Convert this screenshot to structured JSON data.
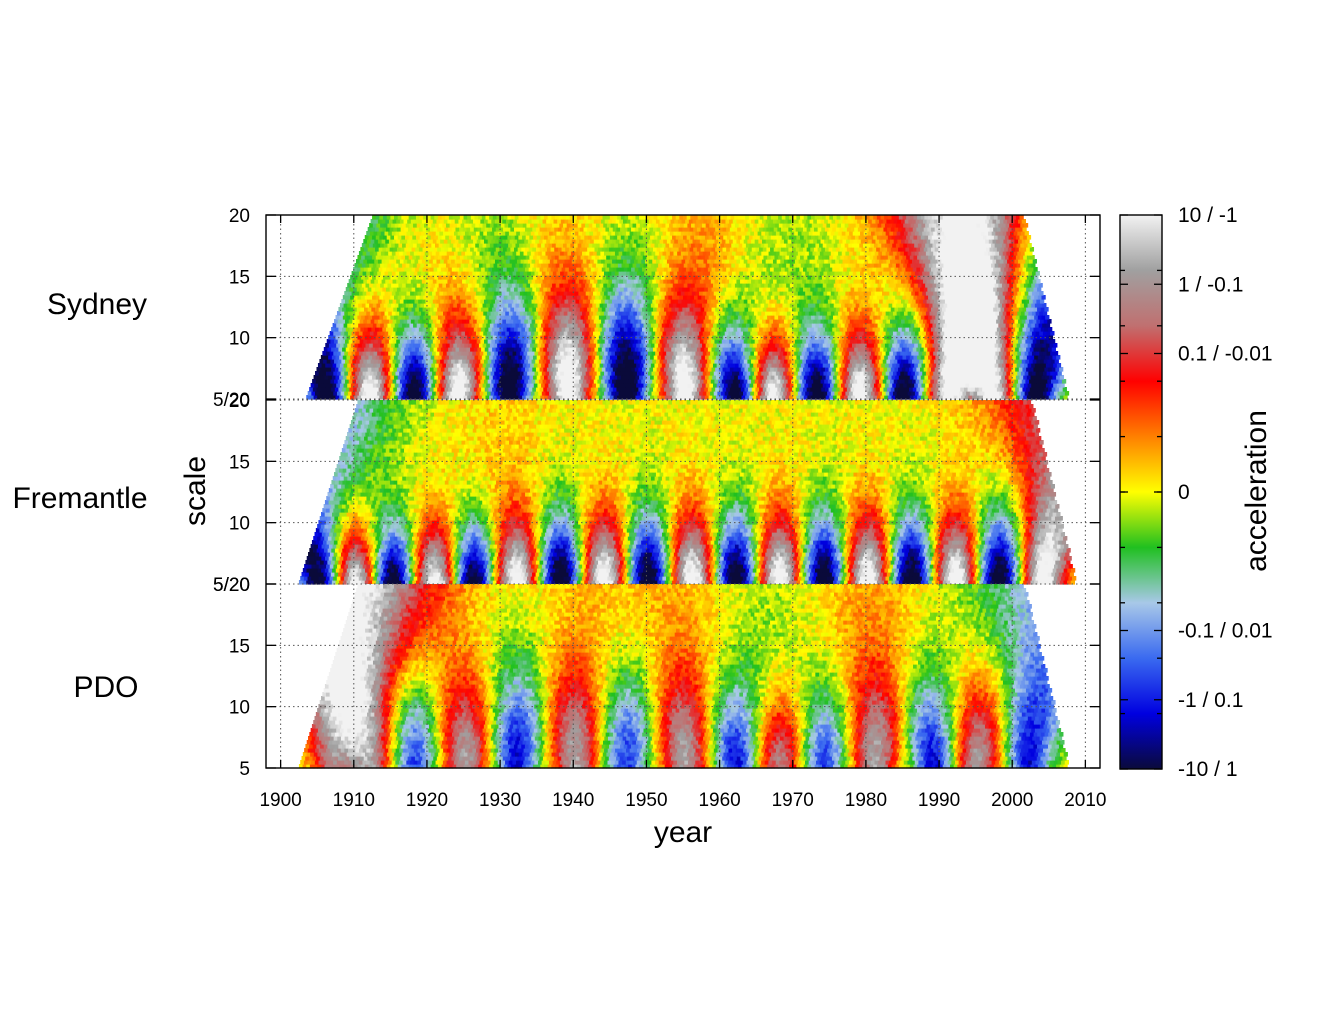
{
  "chart_data": {
    "type": "heatmap",
    "xlabel": "year",
    "ylabel": "scale",
    "colorbar_label": "acceleration",
    "xlim": [
      1898,
      2012
    ],
    "x_ticks": [
      "1900",
      "1910",
      "1920",
      "1930",
      "1940",
      "1950",
      "1960",
      "1970",
      "1980",
      "1990",
      "2000",
      "2010"
    ],
    "colorbar_ticks": [
      {
        "label": "10 / -1",
        "value": 1.0
      },
      {
        "label": "1 / -0.1",
        "value": 0.75
      },
      {
        "label": "0.1 / -0.01",
        "value": 0.5
      },
      {
        "label": "0",
        "value": 0.0
      },
      {
        "label": "-0.1 / 0.01",
        "value": -0.5
      },
      {
        "label": "-1 / 0.1",
        "value": -0.75
      },
      {
        "label": "-10 / 1",
        "value": -1.0
      }
    ],
    "colorbar_colors": [
      "#0a0a3a",
      "#0000e0",
      "#3a6af0",
      "#a8c8e8",
      "#20c020",
      "#ffff00",
      "#ff8000",
      "#ff0000",
      "#c07070",
      "#a0a0a0",
      "#f2f2f2"
    ],
    "panels": [
      {
        "name": "Sydney",
        "y_ticks": [
          "5/20",
          "10",
          "15",
          "20"
        ],
        "ylim": [
          5,
          20
        ],
        "x_start": 1903.5,
        "x_end": 2007.5,
        "phases": [
          {
            "year": 1906,
            "sign": -1
          },
          {
            "year": 1912,
            "sign": 1
          },
          {
            "year": 1918,
            "sign": -1
          },
          {
            "year": 1924,
            "sign": 1
          },
          {
            "year": 1931,
            "sign": -1
          },
          {
            "year": 1939,
            "sign": 1
          },
          {
            "year": 1947,
            "sign": -1
          },
          {
            "year": 1955,
            "sign": 1
          },
          {
            "year": 1962,
            "sign": -1
          },
          {
            "year": 1967,
            "sign": 1
          },
          {
            "year": 1973,
            "sign": -1
          },
          {
            "year": 1979,
            "sign": 1
          },
          {
            "year": 1985,
            "sign": -1
          },
          {
            "year": 1991,
            "sign": 1
          },
          {
            "year": 1997,
            "sign": 1
          },
          {
            "year": 2003,
            "sign": -1
          }
        ]
      },
      {
        "name": "Fremantle",
        "y_ticks": [
          "5/20",
          "10",
          "15",
          "20"
        ],
        "ylim": [
          5,
          20
        ],
        "x_start": 1902.5,
        "x_end": 2008.5,
        "phases": [
          {
            "year": 1905,
            "sign": -1
          },
          {
            "year": 1910,
            "sign": 1
          },
          {
            "year": 1915,
            "sign": -1
          },
          {
            "year": 1921,
            "sign": 1
          },
          {
            "year": 1926,
            "sign": -1
          },
          {
            "year": 1932,
            "sign": 1
          },
          {
            "year": 1938,
            "sign": -1
          },
          {
            "year": 1944,
            "sign": 1
          },
          {
            "year": 1950,
            "sign": -1
          },
          {
            "year": 1956,
            "sign": 1
          },
          {
            "year": 1962,
            "sign": -1
          },
          {
            "year": 1968,
            "sign": 1
          },
          {
            "year": 1974,
            "sign": -1
          },
          {
            "year": 1980,
            "sign": 1
          },
          {
            "year": 1986,
            "sign": -1
          },
          {
            "year": 1992,
            "sign": 1
          },
          {
            "year": 1998,
            "sign": -1
          },
          {
            "year": 2004,
            "sign": 1
          }
        ]
      },
      {
        "name": "PDO",
        "y_ticks": [
          "5",
          "10",
          "15",
          "5/20"
        ],
        "ylim": [
          5,
          20
        ],
        "x_start": 1902.5,
        "x_end": 2007.5,
        "phases": [
          {
            "year": 1907,
            "sign": 0.6
          },
          {
            "year": 1912,
            "sign": 0.7
          },
          {
            "year": 1918,
            "sign": -0.6
          },
          {
            "year": 1925,
            "sign": 0.7
          },
          {
            "year": 1932,
            "sign": -0.7
          },
          {
            "year": 1940,
            "sign": 0.7
          },
          {
            "year": 1947,
            "sign": -0.6
          },
          {
            "year": 1955,
            "sign": 0.7
          },
          {
            "year": 1962,
            "sign": -0.7
          },
          {
            "year": 1968,
            "sign": 0.6
          },
          {
            "year": 1974,
            "sign": -0.6
          },
          {
            "year": 1981,
            "sign": 0.7
          },
          {
            "year": 1989,
            "sign": -0.7
          },
          {
            "year": 1995,
            "sign": 0.7
          },
          {
            "year": 2002,
            "sign": -0.7
          }
        ]
      }
    ]
  }
}
